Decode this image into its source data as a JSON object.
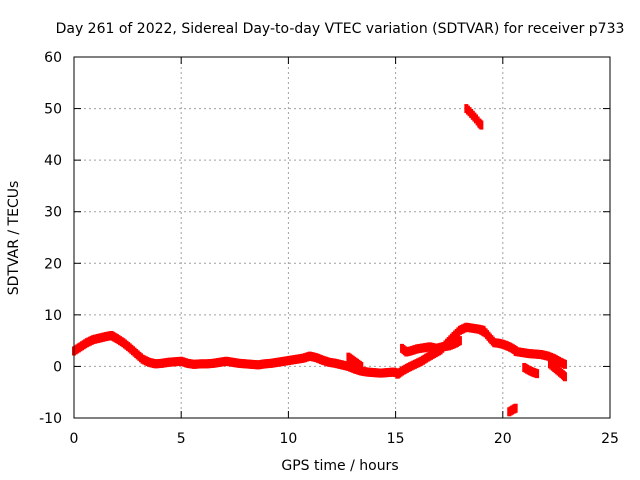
{
  "chart_data": {
    "type": "scatter",
    "title": "Day 261 of 2022, Sidereal Day-to-day VTEC variation (SDTVAR) for receiver p733",
    "xlabel": "GPS time / hours",
    "ylabel": "SDTVAR / TECUs",
    "xlim": [
      0,
      25
    ],
    "ylim": [
      -10,
      60
    ],
    "xticks": [
      0,
      5,
      10,
      15,
      20,
      25
    ],
    "yticks": [
      -10,
      0,
      10,
      20,
      30,
      40,
      50,
      60
    ],
    "grid": true,
    "series": [
      {
        "name": "SDTVAR",
        "color": "#ff0000",
        "segments": [
          {
            "x": [
              0.0,
              0.3,
              0.6,
              0.9,
              1.2,
              1.5,
              1.75,
              2.0,
              2.3,
              2.6,
              2.9,
              3.2,
              3.5,
              3.8,
              4.1,
              4.4,
              4.7,
              5.0,
              5.3,
              5.6,
              5.9,
              6.2,
              6.5,
              6.8,
              7.1,
              7.4,
              7.7,
              8.0,
              8.3,
              8.6,
              8.9,
              9.2,
              9.5,
              9.8,
              10.1,
              10.4,
              10.7,
              11.0,
              11.3,
              11.6,
              11.9,
              12.2,
              12.5,
              12.8,
              13.1,
              13.4,
              13.7,
              14.0,
              14.3,
              14.6,
              14.9,
              15.1
            ],
            "y": [
              3.0,
              3.8,
              4.6,
              5.2,
              5.5,
              5.8,
              6.0,
              5.4,
              4.6,
              3.6,
              2.5,
              1.4,
              0.8,
              0.5,
              0.6,
              0.8,
              0.9,
              1.0,
              0.6,
              0.4,
              0.5,
              0.5,
              0.6,
              0.8,
              1.0,
              0.8,
              0.6,
              0.5,
              0.4,
              0.3,
              0.5,
              0.6,
              0.8,
              1.0,
              1.2,
              1.4,
              1.6,
              2.0,
              1.7,
              1.2,
              0.8,
              0.6,
              0.3,
              0.0,
              -0.5,
              -0.9,
              -1.1,
              -1.2,
              -1.3,
              -1.2,
              -1.1,
              -1.3
            ]
          },
          {
            "x": [
              12.8,
              13.0,
              13.2,
              13.4
            ],
            "y": [
              1.8,
              1.2,
              0.6,
              0.0
            ]
          },
          {
            "x": [
              15.1,
              15.3,
              15.6,
              15.9,
              16.2,
              16.5,
              16.8,
              17.1,
              17.4,
              17.7,
              18.0,
              18.3,
              18.6,
              18.9,
              19.1
            ],
            "y": [
              -1.5,
              -0.9,
              -0.2,
              0.4,
              1.0,
              1.8,
              2.5,
              3.2,
              4.5,
              5.8,
              7.0,
              7.6,
              7.4,
              7.2,
              7.0
            ]
          },
          {
            "x": [
              15.3,
              15.5,
              15.7,
              16.0,
              16.3,
              16.6,
              16.9,
              17.2,
              17.5,
              17.8,
              18.0
            ],
            "y": [
              3.5,
              2.8,
              3.0,
              3.4,
              3.6,
              3.8,
              3.5,
              3.8,
              4.0,
              4.5,
              5.0
            ]
          },
          {
            "x": [
              18.3,
              18.45,
              18.6,
              18.75,
              18.9,
              19.0
            ],
            "y": [
              50.0,
              49.4,
              48.7,
              48.0,
              47.2,
              46.8
            ]
          },
          {
            "x": [
              19.0,
              19.2,
              19.4,
              19.6,
              19.8,
              20.0,
              20.2,
              20.4,
              20.6
            ],
            "y": [
              7.0,
              6.5,
              5.5,
              4.6,
              4.5,
              4.3,
              4.0,
              3.6,
              3.1
            ]
          },
          {
            "x": [
              20.6,
              20.9,
              21.2,
              21.5,
              21.8,
              22.1,
              22.4,
              22.7,
              22.9
            ],
            "y": [
              2.9,
              2.7,
              2.5,
              2.4,
              2.3,
              2.0,
              1.5,
              0.8,
              0.4
            ]
          },
          {
            "x": [
              22.2,
              22.4,
              22.6,
              22.8,
              22.9
            ],
            "y": [
              0.5,
              -0.2,
              -0.9,
              -1.6,
              -2.0
            ]
          },
          {
            "x": [
              21.0,
              21.2,
              21.4,
              21.6
            ],
            "y": [
              -0.2,
              -0.7,
              -1.1,
              -1.4
            ]
          },
          {
            "x": [
              20.3,
              20.5,
              20.6
            ],
            "y": [
              -8.8,
              -8.3,
              -8.1
            ]
          }
        ]
      }
    ]
  }
}
